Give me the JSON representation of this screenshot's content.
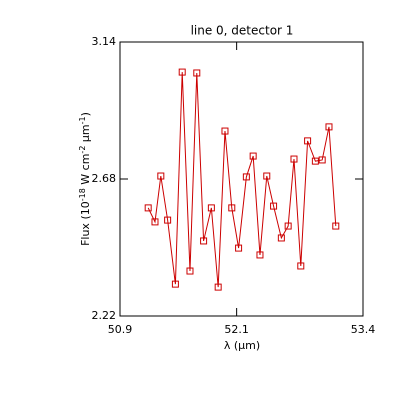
{
  "chart_data": {
    "type": "line",
    "title": "line 0, detector 1",
    "xlabel": "λ (μm)",
    "ylabel_parts": [
      "Flux (10",
      "-18",
      " W cm",
      "-2",
      " μm",
      "-1",
      ")"
    ],
    "x": [
      51.19,
      51.26,
      51.32,
      51.39,
      51.47,
      51.54,
      51.62,
      51.69,
      51.76,
      51.84,
      51.91,
      51.98,
      52.05,
      52.12,
      52.2,
      52.27,
      52.34,
      52.41,
      52.48,
      52.56,
      52.63,
      52.69,
      52.76,
      52.83,
      52.91,
      52.98,
      53.05,
      53.12
    ],
    "series": [
      {
        "color": "#cc0000",
        "values": [
          2.583,
          2.536,
          2.69,
          2.542,
          2.327,
          3.039,
          2.371,
          3.036,
          2.472,
          2.583,
          2.317,
          2.841,
          2.583,
          2.448,
          2.687,
          2.757,
          2.425,
          2.69,
          2.589,
          2.482,
          2.522,
          2.747,
          2.388,
          2.808,
          2.74,
          2.744,
          2.855,
          2.522
        ]
      }
    ],
    "xlim": [
      50.9,
      53.4
    ],
    "xticks": [
      50.9,
      52.1,
      53.4
    ],
    "ylim": [
      2.22,
      3.14
    ],
    "yticks": [
      2.22,
      2.68,
      3.14
    ],
    "marker": "square"
  }
}
